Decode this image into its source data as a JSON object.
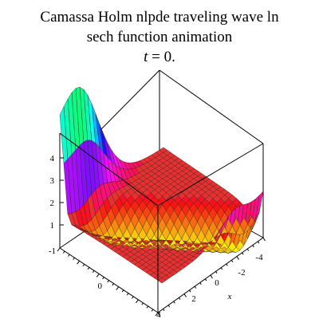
{
  "title": {
    "line1": "Camassa Holm nlpde  traveling wave  ln",
    "line2": "sech function animation",
    "line3_var": "t",
    "line3_rest": " = 0."
  },
  "chart_data": {
    "type": "surface3d",
    "title": "Camassa Holm nlpde  traveling wave  ln sech function animation t = 0.",
    "xlabel": "x",
    "ylabel": "",
    "zlabel": "",
    "x_range": [
      -4,
      4
    ],
    "y_range": [
      -1,
      4
    ],
    "z_range": [
      0,
      4.7
    ],
    "x_ticks": [
      "-4",
      "-2",
      "0",
      "2",
      "4"
    ],
    "y_ticks": [
      "-1",
      "0"
    ],
    "z_ticks": [
      "1",
      "2",
      "3",
      "4"
    ],
    "baseline_z": 1,
    "peak_z": 4.5,
    "peak_location": "x = -4 edge (left corner)",
    "secondary_peak_z": 2.6,
    "secondary_peak_location": "x = 4 edge (right)",
    "colormap": "rainbow (z-based) on wave, red flat plane",
    "plane_color": "#e83030",
    "gridlines": true,
    "box": true
  }
}
